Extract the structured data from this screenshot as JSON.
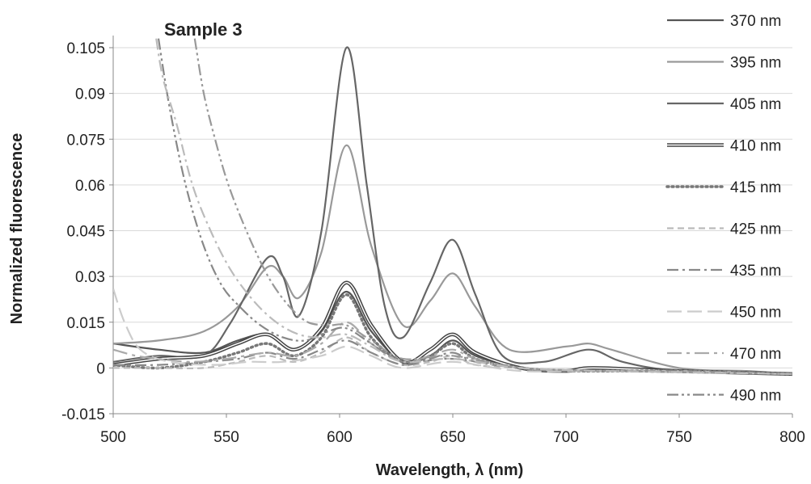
{
  "chart_data": {
    "type": "line",
    "title": "Sample 3",
    "xlabel": "Wavelength, λ (nm)",
    "ylabel": "Normalized fluorescence",
    "xlim": [
      500,
      800
    ],
    "ylim": [
      -0.015,
      0.105
    ],
    "xticks": [
      500,
      550,
      600,
      650,
      700,
      750,
      800
    ],
    "xtick_labels": [
      "500",
      "550",
      "600",
      "650",
      "700",
      "750",
      "800"
    ],
    "yticks": [
      -0.015,
      0,
      0.015,
      0.03,
      0.045,
      0.06,
      0.075,
      0.09,
      0.105
    ],
    "ytick_labels": [
      "-0.015",
      "0",
      "0.015",
      "0.03",
      "0.045",
      "0.06",
      "0.075",
      "0.09",
      "0.105"
    ],
    "grid": "horizontal",
    "legend_position": "right",
    "series": [
      {
        "name": "370 nm",
        "color": "#555555",
        "dash": "solid",
        "points": [
          [
            500,
            0.008
          ],
          [
            520,
            0.006
          ],
          [
            540,
            0.005
          ],
          [
            555,
            0.009
          ],
          [
            568,
            0.011
          ],
          [
            580,
            0.006
          ],
          [
            592,
            0.012
          ],
          [
            603,
            0.025
          ],
          [
            614,
            0.012
          ],
          [
            628,
            0.002
          ],
          [
            640,
            0.004
          ],
          [
            650,
            0.009
          ],
          [
            660,
            0.004
          ],
          [
            680,
            0.0
          ],
          [
            700,
            -0.001
          ],
          [
            712,
            0.0
          ],
          [
            730,
            -0.001
          ],
          [
            760,
            -0.001
          ],
          [
            800,
            -0.002
          ]
        ]
      },
      {
        "name": "395 nm",
        "color": "#999999",
        "dash": "solid",
        "points": [
          [
            500,
            0.008
          ],
          [
            520,
            0.009
          ],
          [
            540,
            0.012
          ],
          [
            555,
            0.02
          ],
          [
            568,
            0.033
          ],
          [
            575,
            0.03
          ],
          [
            582,
            0.023
          ],
          [
            592,
            0.038
          ],
          [
            603,
            0.073
          ],
          [
            614,
            0.04
          ],
          [
            628,
            0.014
          ],
          [
            640,
            0.022
          ],
          [
            650,
            0.031
          ],
          [
            660,
            0.02
          ],
          [
            675,
            0.006
          ],
          [
            700,
            0.007
          ],
          [
            710,
            0.008
          ],
          [
            720,
            0.006
          ],
          [
            750,
            0.0
          ],
          [
            780,
            -0.001
          ],
          [
            800,
            -0.002
          ]
        ]
      },
      {
        "name": "405 nm",
        "color": "#666666",
        "dash": "solid",
        "points": [
          [
            500,
            0.002
          ],
          [
            520,
            0.004
          ],
          [
            540,
            0.004
          ],
          [
            552,
            0.015
          ],
          [
            568,
            0.036
          ],
          [
            575,
            0.03
          ],
          [
            582,
            0.017
          ],
          [
            592,
            0.045
          ],
          [
            603,
            0.105
          ],
          [
            612,
            0.06
          ],
          [
            620,
            0.02
          ],
          [
            628,
            0.01
          ],
          [
            640,
            0.028
          ],
          [
            650,
            0.042
          ],
          [
            660,
            0.024
          ],
          [
            672,
            0.004
          ],
          [
            690,
            0.002
          ],
          [
            710,
            0.006
          ],
          [
            725,
            0.002
          ],
          [
            750,
            -0.001
          ],
          [
            800,
            -0.002
          ]
        ]
      },
      {
        "name": "410 nm",
        "color": "#444444",
        "dash": "double",
        "points": [
          [
            500,
            0.001
          ],
          [
            520,
            0.003
          ],
          [
            540,
            0.004
          ],
          [
            555,
            0.008
          ],
          [
            568,
            0.011
          ],
          [
            580,
            0.006
          ],
          [
            592,
            0.013
          ],
          [
            603,
            0.028
          ],
          [
            614,
            0.014
          ],
          [
            628,
            0.002
          ],
          [
            640,
            0.006
          ],
          [
            650,
            0.011
          ],
          [
            660,
            0.005
          ],
          [
            680,
            0.0
          ],
          [
            700,
            -0.001
          ],
          [
            712,
            0.0
          ],
          [
            750,
            -0.001
          ],
          [
            800,
            -0.002
          ]
        ]
      },
      {
        "name": "415 nm",
        "color": "#777777",
        "dash": "dotted",
        "points": [
          [
            500,
            0.001
          ],
          [
            520,
            0.0
          ],
          [
            540,
            0.002
          ],
          [
            555,
            0.005
          ],
          [
            568,
            0.008
          ],
          [
            580,
            0.004
          ],
          [
            592,
            0.01
          ],
          [
            603,
            0.024
          ],
          [
            614,
            0.01
          ],
          [
            628,
            0.002
          ],
          [
            640,
            0.004
          ],
          [
            650,
            0.008
          ],
          [
            660,
            0.003
          ],
          [
            680,
            0.0
          ],
          [
            700,
            -0.001
          ],
          [
            750,
            -0.001
          ],
          [
            800,
            -0.002
          ]
        ]
      },
      {
        "name": "425 nm",
        "color": "#bbbbbb",
        "dash": "dashed",
        "points": [
          [
            500,
            0.0
          ],
          [
            520,
            0.0
          ],
          [
            540,
            0.0
          ],
          [
            555,
            0.002
          ],
          [
            568,
            0.004
          ],
          [
            580,
            0.002
          ],
          [
            592,
            0.005
          ],
          [
            603,
            0.01
          ],
          [
            614,
            0.005
          ],
          [
            628,
            0.001
          ],
          [
            640,
            0.002
          ],
          [
            650,
            0.004
          ],
          [
            660,
            0.001
          ],
          [
            680,
            0.0
          ],
          [
            700,
            -0.001
          ],
          [
            750,
            -0.001
          ],
          [
            800,
            -0.002
          ]
        ]
      },
      {
        "name": "435 nm",
        "color": "#888888",
        "dash": "dashdot",
        "points": [
          [
            500,
            0.001
          ],
          [
            520,
            0.001
          ],
          [
            540,
            0.002
          ],
          [
            555,
            0.003
          ],
          [
            568,
            0.005
          ],
          [
            580,
            0.003
          ],
          [
            592,
            0.006
          ],
          [
            603,
            0.009
          ],
          [
            614,
            0.005
          ],
          [
            628,
            0.001
          ],
          [
            640,
            0.003
          ],
          [
            650,
            0.005
          ],
          [
            660,
            0.002
          ],
          [
            680,
            0.0
          ],
          [
            700,
            -0.001
          ],
          [
            750,
            -0.001
          ],
          [
            800,
            -0.002
          ]
        ]
      },
      {
        "name": "450 nm",
        "color": "#cccccc",
        "dash": "longdash",
        "points": [
          [
            500,
            0.026
          ],
          [
            505,
            0.015
          ],
          [
            512,
            0.006
          ],
          [
            525,
            0.002
          ],
          [
            545,
            0.001
          ],
          [
            560,
            0.002
          ],
          [
            575,
            0.002
          ],
          [
            592,
            0.004
          ],
          [
            603,
            0.007
          ],
          [
            614,
            0.004
          ],
          [
            628,
            0.0
          ],
          [
            650,
            0.002
          ],
          [
            680,
            -0.001
          ],
          [
            720,
            -0.001
          ],
          [
            800,
            -0.002
          ]
        ]
      },
      {
        "name": "470 nm",
        "color": "#aaaaaa",
        "dash": "longdashdot",
        "points": [
          [
            500,
            0.006
          ],
          [
            510,
            0.004
          ],
          [
            520,
            0.003
          ],
          [
            535,
            0.002
          ],
          [
            550,
            0.003
          ],
          [
            568,
            0.005
          ],
          [
            580,
            0.004
          ],
          [
            592,
            0.008
          ],
          [
            603,
            0.015
          ],
          [
            614,
            0.008
          ],
          [
            628,
            0.002
          ],
          [
            640,
            0.004
          ],
          [
            650,
            0.006
          ],
          [
            660,
            0.003
          ],
          [
            680,
            0.0
          ],
          [
            720,
            -0.001
          ],
          [
            800,
            -0.002
          ]
        ]
      },
      {
        "name": "490 nm",
        "color": "#888888",
        "dash": "dashdotdot",
        "points": [
          [
            520,
            0.108
          ],
          [
            525,
            0.085
          ],
          [
            532,
            0.06
          ],
          [
            540,
            0.04
          ],
          [
            548,
            0.027
          ],
          [
            556,
            0.02
          ],
          [
            565,
            0.014
          ],
          [
            575,
            0.01
          ],
          [
            585,
            0.009
          ],
          [
            595,
            0.012
          ],
          [
            603,
            0.013
          ],
          [
            614,
            0.008
          ],
          [
            628,
            0.002
          ],
          [
            650,
            0.003
          ],
          [
            680,
            0.0
          ],
          [
            720,
            -0.001
          ],
          [
            800,
            -0.002
          ]
        ]
      },
      {
        "name": "",
        "color": "#999999",
        "dash": "dashdotdot",
        "points": [
          [
            536,
            0.108
          ],
          [
            540,
            0.09
          ],
          [
            545,
            0.075
          ],
          [
            550,
            0.062
          ],
          [
            556,
            0.05
          ],
          [
            563,
            0.038
          ],
          [
            570,
            0.028
          ],
          [
            578,
            0.02
          ],
          [
            586,
            0.015
          ],
          [
            595,
            0.014
          ],
          [
            603,
            0.014
          ],
          [
            614,
            0.009
          ],
          [
            628,
            0.003
          ],
          [
            650,
            0.004
          ],
          [
            680,
            0.0
          ],
          [
            720,
            -0.001
          ],
          [
            800,
            -0.002
          ]
        ]
      },
      {
        "name": "",
        "color": "#bbbbbb",
        "dash": "dashdot",
        "points": [
          [
            519,
            0.108
          ],
          [
            522,
            0.095
          ],
          [
            528,
            0.08
          ],
          [
            535,
            0.06
          ],
          [
            543,
            0.045
          ],
          [
            552,
            0.032
          ],
          [
            562,
            0.022
          ],
          [
            572,
            0.015
          ],
          [
            582,
            0.011
          ],
          [
            592,
            0.01
          ],
          [
            603,
            0.011
          ],
          [
            614,
            0.007
          ],
          [
            628,
            0.002
          ],
          [
            650,
            0.003
          ],
          [
            680,
            0.0
          ],
          [
            720,
            -0.001
          ],
          [
            800,
            -0.002
          ]
        ]
      }
    ]
  }
}
